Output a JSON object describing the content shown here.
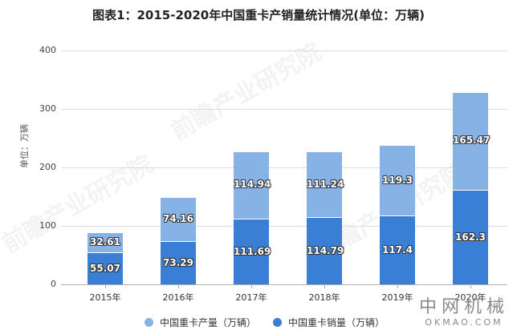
{
  "title": "图表1：2015-2020年中国重卡产销量统计情况(单位：万辆)",
  "y_axis_label": "单位：万辆",
  "y_ticks": [
    "0",
    "100",
    "200",
    "300",
    "400"
  ],
  "watermark": "前瞻产业研究院",
  "brand": {
    "cn": "中网机械",
    "en": "OKMAO.COM"
  },
  "colors": {
    "production": "#86b2e6",
    "sales": "#3a7fd6"
  },
  "legend": [
    {
      "label": "中国重卡产量（万辆）",
      "color": "#86b2e6"
    },
    {
      "label": "中国重卡销量（万辆）",
      "color": "#3a7fd6"
    }
  ],
  "categories": [
    "2015年",
    "2016年",
    "2017年",
    "2018年",
    "2019年",
    "2020年"
  ],
  "bars": [
    {
      "sales": "55.07",
      "production": "32.61"
    },
    {
      "sales": "73.29",
      "production": "74.16"
    },
    {
      "sales": "111.69",
      "production": "114.94"
    },
    {
      "sales": "114.79",
      "production": "111.24"
    },
    {
      "sales": "117.4",
      "production": "119.3"
    },
    {
      "sales": "162.3",
      "production": "165.47"
    }
  ],
  "chart_data": {
    "type": "bar",
    "stacked": true,
    "title": "图表1：2015-2020年中国重卡产销量统计情况(单位：万辆)",
    "xlabel": "",
    "ylabel": "单位：万辆",
    "ylim": [
      0,
      400
    ],
    "yticks": [
      0,
      100,
      200,
      300,
      400
    ],
    "grid": true,
    "legend_position": "bottom",
    "categories": [
      "2015年",
      "2016年",
      "2017年",
      "2018年",
      "2019年",
      "2020年"
    ],
    "series": [
      {
        "name": "中国重卡销量（万辆）",
        "values": [
          55.07,
          73.29,
          111.69,
          114.79,
          117.4,
          162.3
        ]
      },
      {
        "name": "中国重卡产量（万辆）",
        "values": [
          32.61,
          74.16,
          114.94,
          111.24,
          119.3,
          165.47
        ]
      }
    ]
  }
}
